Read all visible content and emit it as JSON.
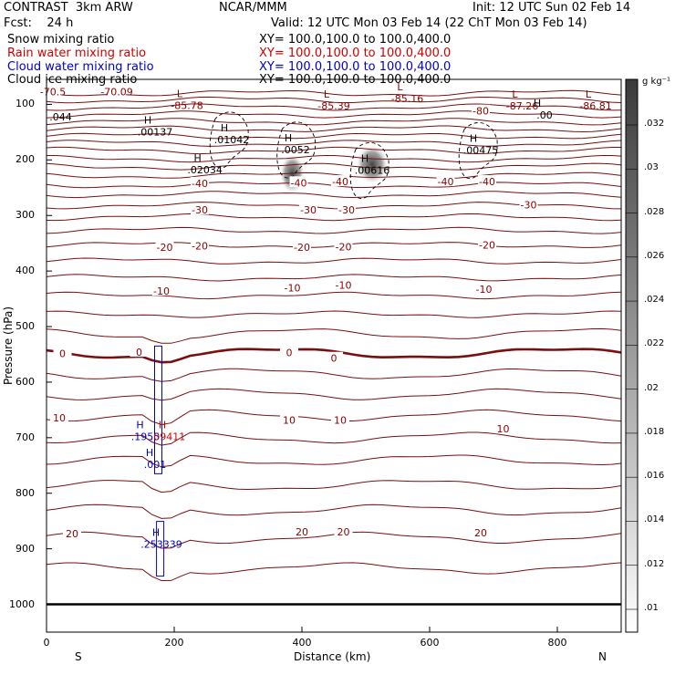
{
  "header": {
    "left1": "CONTRAST  3km ARW",
    "center1": "NCAR/MMM",
    "right1": "Init: 12 UTC Sun 02 Feb 14",
    "left2": "Fcst:    24 h",
    "right2": "Valid: 12 UTC Mon 03 Feb 14 (22 ChT Mon 03 Feb 14)"
  },
  "legend": [
    {
      "label": "Snow mixing ratio",
      "xy": "XY= 100.0,100.0 to 100.0,400.0",
      "color": "#000000"
    },
    {
      "label": "Rain water mixing ratio",
      "xy": "XY= 100.0,100.0 to 100.0,400.0",
      "color": "#d00000"
    },
    {
      "label": "Cloud water mixing ratio",
      "xy": "XY= 100.0,100.0 to 100.0,400.0",
      "color": "#0000cc"
    },
    {
      "label": "Cloud ice mixing ratio",
      "xy": "XY= 100.0,100.0 to 100.0,400.0",
      "color": "#000000"
    }
  ],
  "axes": {
    "ylabel": "Pressure (hPa)",
    "xlabel": "Distance (km)",
    "left_end": "S",
    "right_end": "N"
  },
  "colorbar": {
    "unit": "g kg⁻¹",
    "ticks": [
      ".032",
      ".03",
      ".028",
      ".026",
      ".024",
      ".022",
      ".02",
      ".018",
      ".016",
      ".014",
      ".012",
      ".01"
    ]
  },
  "chart_data": {
    "type": "cross-section",
    "x": {
      "label": "Distance (km)",
      "range": [
        0,
        900
      ],
      "ticks": [
        0,
        200,
        400,
        600,
        800
      ]
    },
    "y": {
      "label": "Pressure (hPa)",
      "range": [
        1050,
        55
      ],
      "ticks": [
        100,
        200,
        300,
        400,
        500,
        600,
        700,
        800,
        900,
        1000
      ]
    },
    "temperature_contour_labels": [
      {
        "text": "-70.5",
        "x": 10,
        "p": 77
      },
      {
        "text": "-70.09",
        "x": 110,
        "p": 77
      },
      {
        "text": "-80",
        "x": 680,
        "p": 112
      },
      {
        "text": "-40",
        "x": 240,
        "p": 242
      },
      {
        "text": "-40",
        "x": 460,
        "p": 239
      },
      {
        "text": "-40",
        "x": 625,
        "p": 239
      },
      {
        "text": "-40",
        "x": 690,
        "p": 239
      },
      {
        "text": "-40",
        "x": 395,
        "p": 241
      },
      {
        "text": "-30",
        "x": 240,
        "p": 290
      },
      {
        "text": "-30",
        "x": 410,
        "p": 290
      },
      {
        "text": "-30",
        "x": 470,
        "p": 290
      },
      {
        "text": "-30",
        "x": 755,
        "p": 281
      },
      {
        "text": "-20",
        "x": 185,
        "p": 357
      },
      {
        "text": "-20",
        "x": 240,
        "p": 355
      },
      {
        "text": "-20",
        "x": 400,
        "p": 357
      },
      {
        "text": "-20",
        "x": 465,
        "p": 356
      },
      {
        "text": "-20",
        "x": 690,
        "p": 353
      },
      {
        "text": "-10",
        "x": 180,
        "p": 436
      },
      {
        "text": "-10",
        "x": 385,
        "p": 430
      },
      {
        "text": "-10",
        "x": 465,
        "p": 425
      },
      {
        "text": "-10",
        "x": 685,
        "p": 433
      },
      {
        "text": "0",
        "x": 25,
        "p": 548
      },
      {
        "text": "0",
        "x": 145,
        "p": 546
      },
      {
        "text": "0",
        "x": 380,
        "p": 547
      },
      {
        "text": "0",
        "x": 450,
        "p": 557
      },
      {
        "text": "10",
        "x": 20,
        "p": 664
      },
      {
        "text": "10",
        "x": 380,
        "p": 668
      },
      {
        "text": "10",
        "x": 460,
        "p": 668
      },
      {
        "text": "10",
        "x": 715,
        "p": 684
      },
      {
        "text": "20",
        "x": 40,
        "p": 873
      },
      {
        "text": "20",
        "x": 400,
        "p": 869
      },
      {
        "text": "20",
        "x": 465,
        "p": 869
      },
      {
        "text": "20",
        "x": 680,
        "p": 871
      }
    ],
    "pressure_extrema": [
      {
        "kind": "L",
        "value": "-85.78",
        "x": 220,
        "p": 100
      },
      {
        "kind": "L",
        "value": "-85.39",
        "x": 450,
        "p": 101
      },
      {
        "kind": "L",
        "value": "-85.16",
        "x": 565,
        "p": 88
      },
      {
        "kind": "L",
        "value": "-87.26",
        "x": 745,
        "p": 101
      },
      {
        "kind": "L",
        "value": "-86.81",
        "x": 860,
        "p": 101
      }
    ],
    "ice_extrema": [
      {
        "kind": "H",
        "value": ".00137",
        "x": 170,
        "p": 148
      },
      {
        "kind": "H",
        "value": ".01042",
        "x": 290,
        "p": 162
      },
      {
        "kind": "H",
        "value": ".0052",
        "x": 390,
        "p": 180
      },
      {
        "kind": "H",
        "value": ".00616",
        "x": 510,
        "p": 217
      },
      {
        "kind": "H",
        "value": ".00475",
        "x": 680,
        "p": 181
      },
      {
        "kind": "H",
        "value": ".00",
        "x": 780,
        "p": 117
      },
      {
        "kind": "H",
        "value": ".02034",
        "x": 248,
        "p": 216
      }
    ],
    "cloud_water_extrema": [
      {
        "kind": "H",
        "value": ".1955",
        "x": 155,
        "p": 696
      },
      {
        "kind": "H",
        "value": ".001",
        "x": 170,
        "p": 746
      },
      {
        "kind": "H",
        "value": ".253339",
        "x": 180,
        "p": 890
      }
    ],
    "rain_extrema": [
      {
        "kind": "H",
        "value": ".09411",
        "x": 190,
        "p": 696
      }
    ],
    "edge_label": {
      "text": ".044",
      "x": 5,
      "p": 122
    },
    "snow_shading": [
      {
        "x": 385,
        "p": 225,
        "value": 0.016
      },
      {
        "x": 510,
        "p": 208,
        "value": 0.022
      }
    ],
    "surface_pressure": 1000
  }
}
